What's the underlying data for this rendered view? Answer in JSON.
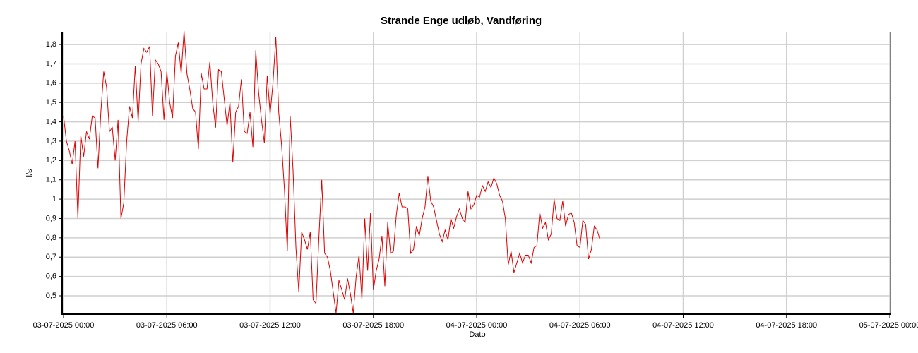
{
  "chart_data": {
    "type": "line",
    "title": "Strande Enge udløb, Vandføring",
    "x_label": "Dato",
    "y_label": "l/s",
    "x": [
      "03-07-2025 00:00",
      "03-07-2025 00:10",
      "03-07-2025 00:20",
      "03-07-2025 00:30",
      "03-07-2025 00:40",
      "03-07-2025 00:50",
      "03-07-2025 01:00",
      "03-07-2025 01:10",
      "03-07-2025 01:20",
      "03-07-2025 01:30",
      "03-07-2025 01:40",
      "03-07-2025 01:50",
      "03-07-2025 02:00",
      "03-07-2025 02:10",
      "03-07-2025 02:20",
      "03-07-2025 02:30",
      "03-07-2025 02:40",
      "03-07-2025 02:50",
      "03-07-2025 03:00",
      "03-07-2025 03:10",
      "03-07-2025 03:20",
      "03-07-2025 03:30",
      "03-07-2025 03:40",
      "03-07-2025 03:50",
      "03-07-2025 04:00",
      "03-07-2025 04:10",
      "03-07-2025 04:20",
      "03-07-2025 04:30",
      "03-07-2025 04:40",
      "03-07-2025 04:50",
      "03-07-2025 05:00",
      "03-07-2025 05:10",
      "03-07-2025 05:20",
      "03-07-2025 05:30",
      "03-07-2025 05:40",
      "03-07-2025 05:50",
      "03-07-2025 06:00",
      "03-07-2025 06:10",
      "03-07-2025 06:20",
      "03-07-2025 06:30",
      "03-07-2025 06:40",
      "03-07-2025 06:50",
      "03-07-2025 07:00",
      "03-07-2025 07:10",
      "03-07-2025 07:20",
      "03-07-2025 07:30",
      "03-07-2025 07:40",
      "03-07-2025 07:50",
      "03-07-2025 08:00",
      "03-07-2025 08:10",
      "03-07-2025 08:20",
      "03-07-2025 08:30",
      "03-07-2025 08:40",
      "03-07-2025 08:50",
      "03-07-2025 09:00",
      "03-07-2025 09:10",
      "03-07-2025 09:20",
      "03-07-2025 09:30",
      "03-07-2025 09:40",
      "03-07-2025 09:50",
      "03-07-2025 10:00",
      "03-07-2025 10:10",
      "03-07-2025 10:20",
      "03-07-2025 10:30",
      "03-07-2025 10:40",
      "03-07-2025 10:50",
      "03-07-2025 11:00",
      "03-07-2025 11:10",
      "03-07-2025 11:20",
      "03-07-2025 11:30",
      "03-07-2025 11:40",
      "03-07-2025 11:50",
      "03-07-2025 12:00",
      "03-07-2025 12:10",
      "03-07-2025 12:20",
      "03-07-2025 12:30",
      "03-07-2025 12:40",
      "03-07-2025 12:50",
      "03-07-2025 13:00",
      "03-07-2025 13:10",
      "03-07-2025 13:20",
      "03-07-2025 13:30",
      "03-07-2025 13:40",
      "03-07-2025 13:50",
      "03-07-2025 14:00",
      "03-07-2025 14:10",
      "03-07-2025 14:20",
      "03-07-2025 14:30",
      "03-07-2025 14:40",
      "03-07-2025 14:50",
      "03-07-2025 15:00",
      "03-07-2025 15:10",
      "03-07-2025 15:20",
      "03-07-2025 15:30",
      "03-07-2025 15:40",
      "03-07-2025 15:50",
      "03-07-2025 16:00",
      "03-07-2025 16:10",
      "03-07-2025 16:20",
      "03-07-2025 16:30",
      "03-07-2025 16:40",
      "03-07-2025 16:50",
      "03-07-2025 17:00",
      "03-07-2025 17:10",
      "03-07-2025 17:20",
      "03-07-2025 17:30",
      "03-07-2025 17:40",
      "03-07-2025 17:50",
      "03-07-2025 18:00",
      "03-07-2025 18:10",
      "03-07-2025 18:20",
      "03-07-2025 18:30",
      "03-07-2025 18:40",
      "03-07-2025 18:50",
      "03-07-2025 19:00",
      "03-07-2025 19:10",
      "03-07-2025 19:20",
      "03-07-2025 19:30",
      "03-07-2025 19:40",
      "03-07-2025 19:50",
      "03-07-2025 20:00",
      "03-07-2025 20:10",
      "03-07-2025 20:20",
      "03-07-2025 20:30",
      "03-07-2025 20:40",
      "03-07-2025 20:50",
      "03-07-2025 21:00",
      "03-07-2025 21:10",
      "03-07-2025 21:20",
      "03-07-2025 21:30",
      "03-07-2025 21:40",
      "03-07-2025 21:50",
      "03-07-2025 22:00",
      "03-07-2025 22:10",
      "03-07-2025 22:20",
      "03-07-2025 22:30",
      "03-07-2025 22:40",
      "03-07-2025 22:50",
      "03-07-2025 23:00",
      "03-07-2025 23:10",
      "03-07-2025 23:20",
      "03-07-2025 23:30",
      "03-07-2025 23:40",
      "03-07-2025 23:50",
      "04-07-2025 00:00",
      "04-07-2025 00:10",
      "04-07-2025 00:20",
      "04-07-2025 00:30",
      "04-07-2025 00:40",
      "04-07-2025 00:50",
      "04-07-2025 01:00",
      "04-07-2025 01:10",
      "04-07-2025 01:20",
      "04-07-2025 01:30",
      "04-07-2025 01:40",
      "04-07-2025 01:50",
      "04-07-2025 02:00",
      "04-07-2025 02:10",
      "04-07-2025 02:20",
      "04-07-2025 02:30",
      "04-07-2025 02:40",
      "04-07-2025 02:50",
      "04-07-2025 03:00",
      "04-07-2025 03:10",
      "04-07-2025 03:20",
      "04-07-2025 03:30",
      "04-07-2025 03:40",
      "04-07-2025 03:50",
      "04-07-2025 04:00",
      "04-07-2025 04:10",
      "04-07-2025 04:20",
      "04-07-2025 04:30",
      "04-07-2025 04:40",
      "04-07-2025 04:50",
      "04-07-2025 05:00",
      "04-07-2025 05:10",
      "04-07-2025 05:20",
      "04-07-2025 05:30",
      "04-07-2025 05:40",
      "04-07-2025 05:50",
      "04-07-2025 06:00",
      "04-07-2025 06:10",
      "04-07-2025 06:20",
      "04-07-2025 06:30",
      "04-07-2025 06:40",
      "04-07-2025 06:50",
      "04-07-2025 07:00",
      "04-07-2025 07:10"
    ],
    "series": [
      {
        "color": "#dd0000",
        "values": [
          1.43,
          1.3,
          1.25,
          1.18,
          1.3,
          0.9,
          1.33,
          1.22,
          1.35,
          1.31,
          1.43,
          1.42,
          1.16,
          1.45,
          1.66,
          1.58,
          1.35,
          1.37,
          1.2,
          1.41,
          0.9,
          0.98,
          1.3,
          1.48,
          1.42,
          1.69,
          1.4,
          1.7,
          1.78,
          1.76,
          1.79,
          1.43,
          1.72,
          1.7,
          1.66,
          1.41,
          1.66,
          1.5,
          1.42,
          1.74,
          1.81,
          1.65,
          1.87,
          1.65,
          1.57,
          1.47,
          1.45,
          1.26,
          1.65,
          1.57,
          1.57,
          1.71,
          1.5,
          1.37,
          1.67,
          1.66,
          1.52,
          1.38,
          1.5,
          1.19,
          1.45,
          1.48,
          1.62,
          1.35,
          1.34,
          1.45,
          1.27,
          1.77,
          1.55,
          1.41,
          1.29,
          1.64,
          1.44,
          1.6,
          1.84,
          1.45,
          1.28,
          1.05,
          0.73,
          1.43,
          1.15,
          0.75,
          0.52,
          0.83,
          0.79,
          0.74,
          0.83,
          0.48,
          0.46,
          0.8,
          1.1,
          0.72,
          0.7,
          0.63,
          0.52,
          0.41,
          0.58,
          0.53,
          0.48,
          0.59,
          0.51,
          0.41,
          0.6,
          0.71,
          0.48,
          0.9,
          0.63,
          0.93,
          0.53,
          0.63,
          0.69,
          0.81,
          0.55,
          0.88,
          0.72,
          0.73,
          0.92,
          1.03,
          0.96,
          0.96,
          0.95,
          0.72,
          0.74,
          0.86,
          0.81,
          0.9,
          0.96,
          1.12,
          0.99,
          0.96,
          0.89,
          0.82,
          0.78,
          0.84,
          0.79,
          0.9,
          0.85,
          0.91,
          0.95,
          0.9,
          0.88,
          1.04,
          0.95,
          0.97,
          1.02,
          1.01,
          1.07,
          1.04,
          1.09,
          1.06,
          1.11,
          1.08,
          1.02,
          0.99,
          0.9,
          0.66,
          0.73,
          0.62,
          0.67,
          0.72,
          0.67,
          0.71,
          0.71,
          0.67,
          0.75,
          0.76,
          0.93,
          0.85,
          0.88,
          0.79,
          0.82,
          1.0,
          0.9,
          0.89,
          0.99,
          0.86,
          0.92,
          0.93,
          0.88,
          0.76,
          0.75,
          0.89,
          0.87,
          0.69,
          0.74,
          0.86,
          0.84,
          0.79
        ]
      }
    ],
    "xlim": [
      "03-07-2025 00:00",
      "05-07-2025 00:00"
    ],
    "xticks": [
      "03-07-2025 00:00",
      "03-07-2025 06:00",
      "03-07-2025 12:00",
      "03-07-2025 18:00",
      "04-07-2025 00:00",
      "04-07-2025 06:00",
      "04-07-2025 12:00",
      "04-07-2025 18:00",
      "05-07-2025 00:00"
    ],
    "ylim": [
      0.405,
      1.866
    ],
    "yticks": [
      {
        "value": 0.5,
        "label": "0,5"
      },
      {
        "value": 0.6,
        "label": "0,6"
      },
      {
        "value": 0.7,
        "label": "0,7"
      },
      {
        "value": 0.8,
        "label": "0,8"
      },
      {
        "value": 0.9,
        "label": "0,9"
      },
      1,
      {
        "value": 1.1,
        "label": "1,1"
      },
      {
        "value": 1.2,
        "label": "1,2"
      },
      {
        "value": 1.3,
        "label": "1,3"
      },
      {
        "value": 1.4,
        "label": "1,4"
      },
      {
        "value": 1.5,
        "label": "1,5"
      },
      {
        "value": 1.6,
        "label": "1,6"
      },
      {
        "value": 1.7,
        "label": "1,7"
      },
      {
        "value": 1.8,
        "label": "1,8"
      }
    ],
    "grid": true
  }
}
